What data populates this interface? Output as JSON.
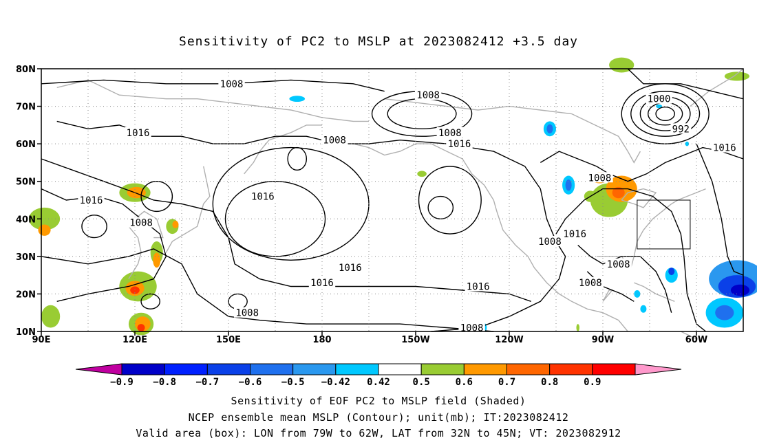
{
  "title": "Sensitivity of PC2 to MSLP at 2023082412 +3.5 day",
  "map": {
    "lat_labels": [
      "80N",
      "70N",
      "60N",
      "50N",
      "40N",
      "30N",
      "20N",
      "10N"
    ],
    "lon_labels": [
      "90E",
      "120E",
      "150E",
      "180",
      "150W",
      "120W",
      "90W",
      "60W"
    ],
    "extent": {
      "lon_min": 90,
      "lon_max": 315,
      "lat_min": 10,
      "lat_max": 80
    },
    "valid_box": {
      "lon_from": 281,
      "lon_to": 298,
      "lat_from": 32,
      "lat_to": 45
    },
    "contour_labels": [
      {
        "text": "1008",
        "lon": 151,
        "lat": 76
      },
      {
        "text": "1008",
        "lon": 214,
        "lat": 73
      },
      {
        "text": "1016",
        "lon": 121,
        "lat": 63
      },
      {
        "text": "1008",
        "lon": 184,
        "lat": 61
      },
      {
        "text": "1008",
        "lon": 221,
        "lat": 63
      },
      {
        "text": "1016",
        "lon": 224,
        "lat": 60
      },
      {
        "text": "1000",
        "lon": 288,
        "lat": 72
      },
      {
        "text": "992",
        "lon": 295,
        "lat": 64
      },
      {
        "text": "1016",
        "lon": 309,
        "lat": 59
      },
      {
        "text": "1016",
        "lon": 106,
        "lat": 45
      },
      {
        "text": "1016",
        "lon": 161,
        "lat": 46
      },
      {
        "text": "1008",
        "lon": 269,
        "lat": 51
      },
      {
        "text": "1008",
        "lon": 122,
        "lat": 39
      },
      {
        "text": "1008",
        "lon": 253,
        "lat": 34
      },
      {
        "text": "1016",
        "lon": 261,
        "lat": 36
      },
      {
        "text": "1016",
        "lon": 189,
        "lat": 27
      },
      {
        "text": "1016",
        "lon": 180,
        "lat": 23
      },
      {
        "text": "1016",
        "lon": 230,
        "lat": 22
      },
      {
        "text": "1008",
        "lon": 275,
        "lat": 28
      },
      {
        "text": "1008",
        "lon": 266,
        "lat": 23
      },
      {
        "text": "1008",
        "lon": 156,
        "lat": 15
      },
      {
        "text": "1008",
        "lon": 228,
        "lat": 11
      }
    ]
  },
  "colorbar": {
    "colors": [
      "#c000a0",
      "#0000c8",
      "#0020ff",
      "#0a40e8",
      "#1f70ee",
      "#2a98ef",
      "#00c8ff",
      "#ffffff",
      "#99cc33",
      "#ff9900",
      "#ff6600",
      "#ff3300",
      "#ff0000",
      "#ff99cc"
    ],
    "labels": [
      "−0.9",
      "−0.8",
      "−0.7",
      "−0.6",
      "−0.5",
      "−0.42",
      "0.42",
      "0.5",
      "0.6",
      "0.7",
      "0.8",
      "0.9"
    ]
  },
  "footer": {
    "line1": "Sensitivity of EOF PC2 to MSLP field (Shaded)",
    "line2": "NCEP ensemble mean MSLP (Contour); unit(mb); IT:2023082412",
    "line3": "Valid area (box): LON from 79W to 62W, LAT from 32N to 45N; VT: 2023082912"
  }
}
